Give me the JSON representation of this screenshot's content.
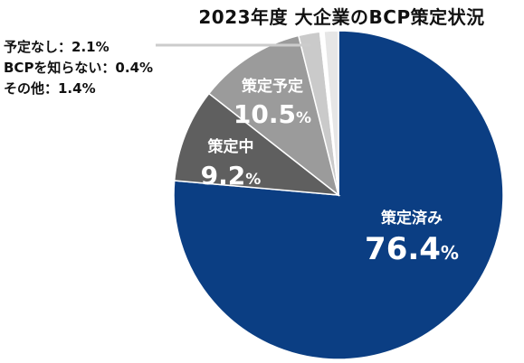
{
  "chart_data": {
    "type": "pie",
    "title": "2023年度 大企業のBCP策定状況",
    "slices": [
      {
        "label": "策定済み",
        "value": 76.4,
        "display": "76.4",
        "color": "#0b3e83",
        "placement": "inside"
      },
      {
        "label": "策定中",
        "value": 9.2,
        "display": "9.2",
        "color": "#5f5f5f",
        "placement": "inside"
      },
      {
        "label": "策定予定",
        "value": 10.5,
        "display": "10.5",
        "color": "#9b9b9b",
        "placement": "inside"
      },
      {
        "label": "予定なし",
        "value": 2.1,
        "display": "2.1%",
        "color": "#cacaca",
        "placement": "outside"
      },
      {
        "label": "BCPを知らない",
        "value": 0.4,
        "display": "0.4%",
        "color": "#ffffff",
        "placement": "outside"
      },
      {
        "label": "その他",
        "value": 1.4,
        "display": "1.4%",
        "color": "#e6e6e6",
        "placement": "outside"
      }
    ],
    "unit": "%",
    "label_separator": "："
  }
}
